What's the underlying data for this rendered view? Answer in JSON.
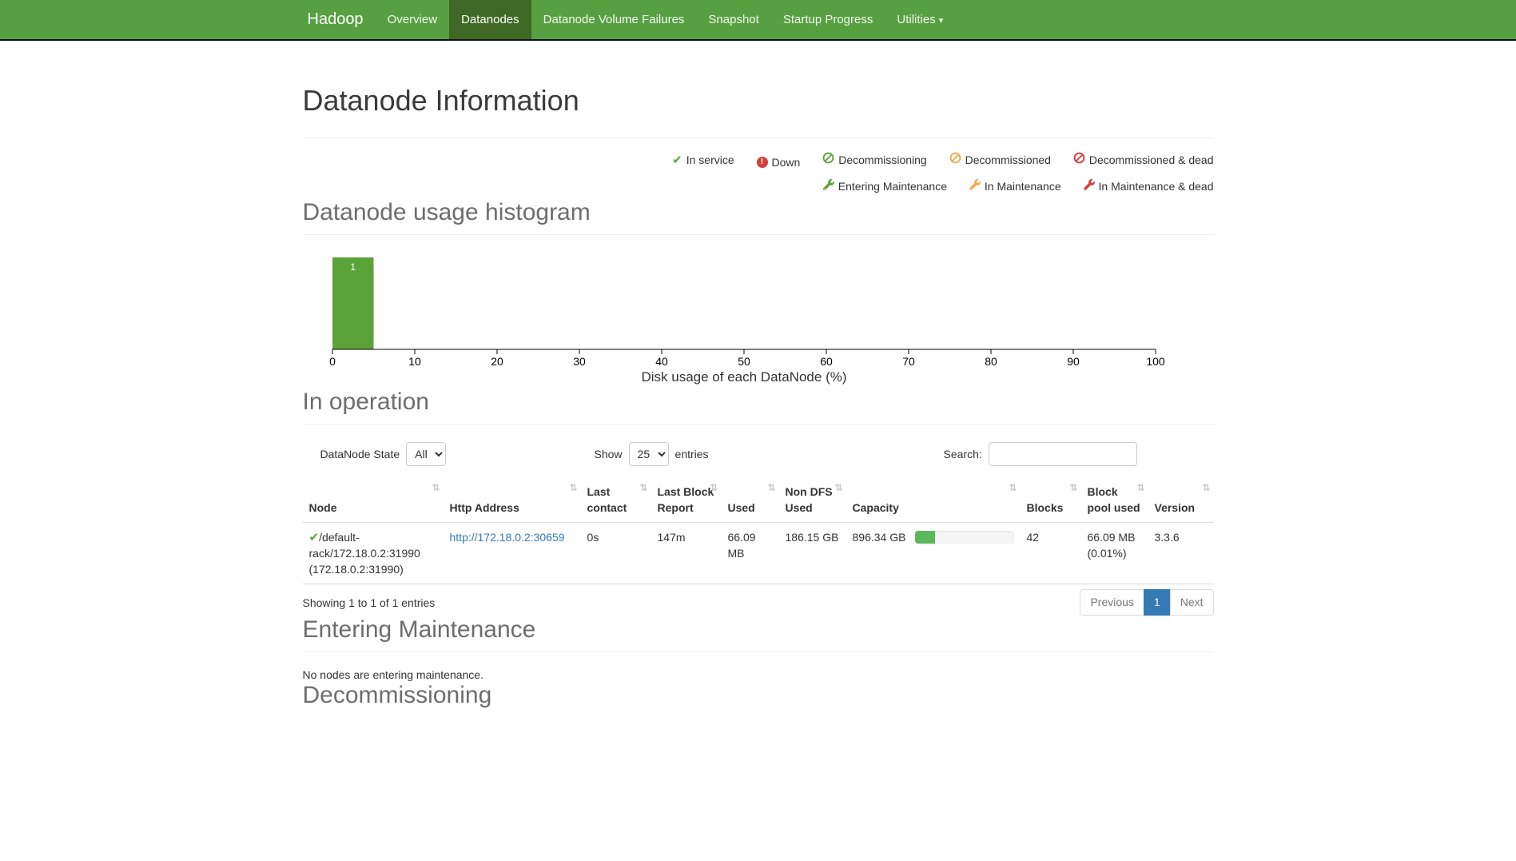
{
  "navbar": {
    "brand": "Hadoop",
    "items": [
      {
        "label": "Overview",
        "active": false
      },
      {
        "label": "Datanodes",
        "active": true
      },
      {
        "label": "Datanode Volume Failures",
        "active": false
      },
      {
        "label": "Snapshot",
        "active": false
      },
      {
        "label": "Startup Progress",
        "active": false
      },
      {
        "label": "Utilities",
        "active": false,
        "caret": true
      }
    ]
  },
  "page": {
    "title": "Datanode Information"
  },
  "legend": {
    "row1": [
      {
        "icon": "check",
        "color": "#5fa33e",
        "label": "In service"
      },
      {
        "icon": "down",
        "color": "#d43f3a",
        "label": "Down"
      },
      {
        "icon": "ban",
        "color": "#5fa33e",
        "label": "Decommissioning"
      },
      {
        "icon": "ban",
        "color": "#f0ad4e",
        "label": "Decommissioned"
      },
      {
        "icon": "ban",
        "color": "#d43f3a",
        "label": "Decommissioned & dead"
      }
    ],
    "row2": [
      {
        "icon": "wrench",
        "color": "#5fa33e",
        "label": "Entering Maintenance"
      },
      {
        "icon": "wrench",
        "color": "#f0ad4e",
        "label": "In Maintenance"
      },
      {
        "icon": "wrench",
        "color": "#d43f3a",
        "label": "In Maintenance & dead"
      }
    ]
  },
  "histogram": {
    "section_title": "Datanode usage histogram",
    "chart_data": {
      "type": "bar",
      "title": "",
      "xlabel": "Disk usage of each DataNode (%)",
      "ylabel": "",
      "xlim": [
        0,
        100
      ],
      "xticks": [
        0,
        10,
        20,
        30,
        40,
        50,
        60,
        70,
        80,
        90,
        100
      ],
      "bars": [
        {
          "x0": 0,
          "x1": 5,
          "count": 1
        }
      ],
      "bar_color": "#5aa339",
      "bar_label_color": "#ffffff",
      "grid": false,
      "legend_position": "none"
    }
  },
  "in_operation": {
    "section_title": "In operation",
    "controls": {
      "state_label": "DataNode State",
      "state_value": "All",
      "show_label": "Show",
      "show_value": "25",
      "entries_label": "entries",
      "search_label": "Search:",
      "search_value": ""
    },
    "table": {
      "columns": [
        "Node",
        "Http Address",
        "Last contact",
        "Last Block Report",
        "Used",
        "Non DFS Used",
        "Capacity",
        "Blocks",
        "Block pool used",
        "Version"
      ],
      "row": {
        "node_status_icon": "check",
        "node_name": "/default-rack/172.18.0.2:31990",
        "node_info": "(172.18.0.2:31990)",
        "http_address": "http://172.18.0.2:30659",
        "last_contact": "0s",
        "last_block_report": "147m",
        "used": "66.09 MB",
        "non_dfs_used": "186.15 GB",
        "capacity": "896.34 GB",
        "capacity_bar_percent": 20,
        "blocks": "42",
        "block_pool_used": "66.09 MB (0.01%)",
        "version": "3.3.6"
      }
    },
    "footer": {
      "showing": "Showing 1 to 1 of 1 entries",
      "previous": "Previous",
      "page": "1",
      "next": "Next"
    }
  },
  "entering_maintenance": {
    "section_title": "Entering Maintenance",
    "empty_text": "No nodes are entering maintenance."
  },
  "decommissioning": {
    "section_title": "Decommissioning"
  },
  "colors": {
    "navbar_bg": "#57a041",
    "navbar_active_bg": "#3e6823",
    "navbar_border": "#0c1117",
    "link": "#337ab7",
    "status_green": "#5fa33e",
    "status_orange": "#f0ad4e",
    "status_red": "#d43f3a",
    "bar_green": "#5aa339",
    "progress_fill": "#5cb85c",
    "pagination_active_bg": "#337ab7"
  }
}
